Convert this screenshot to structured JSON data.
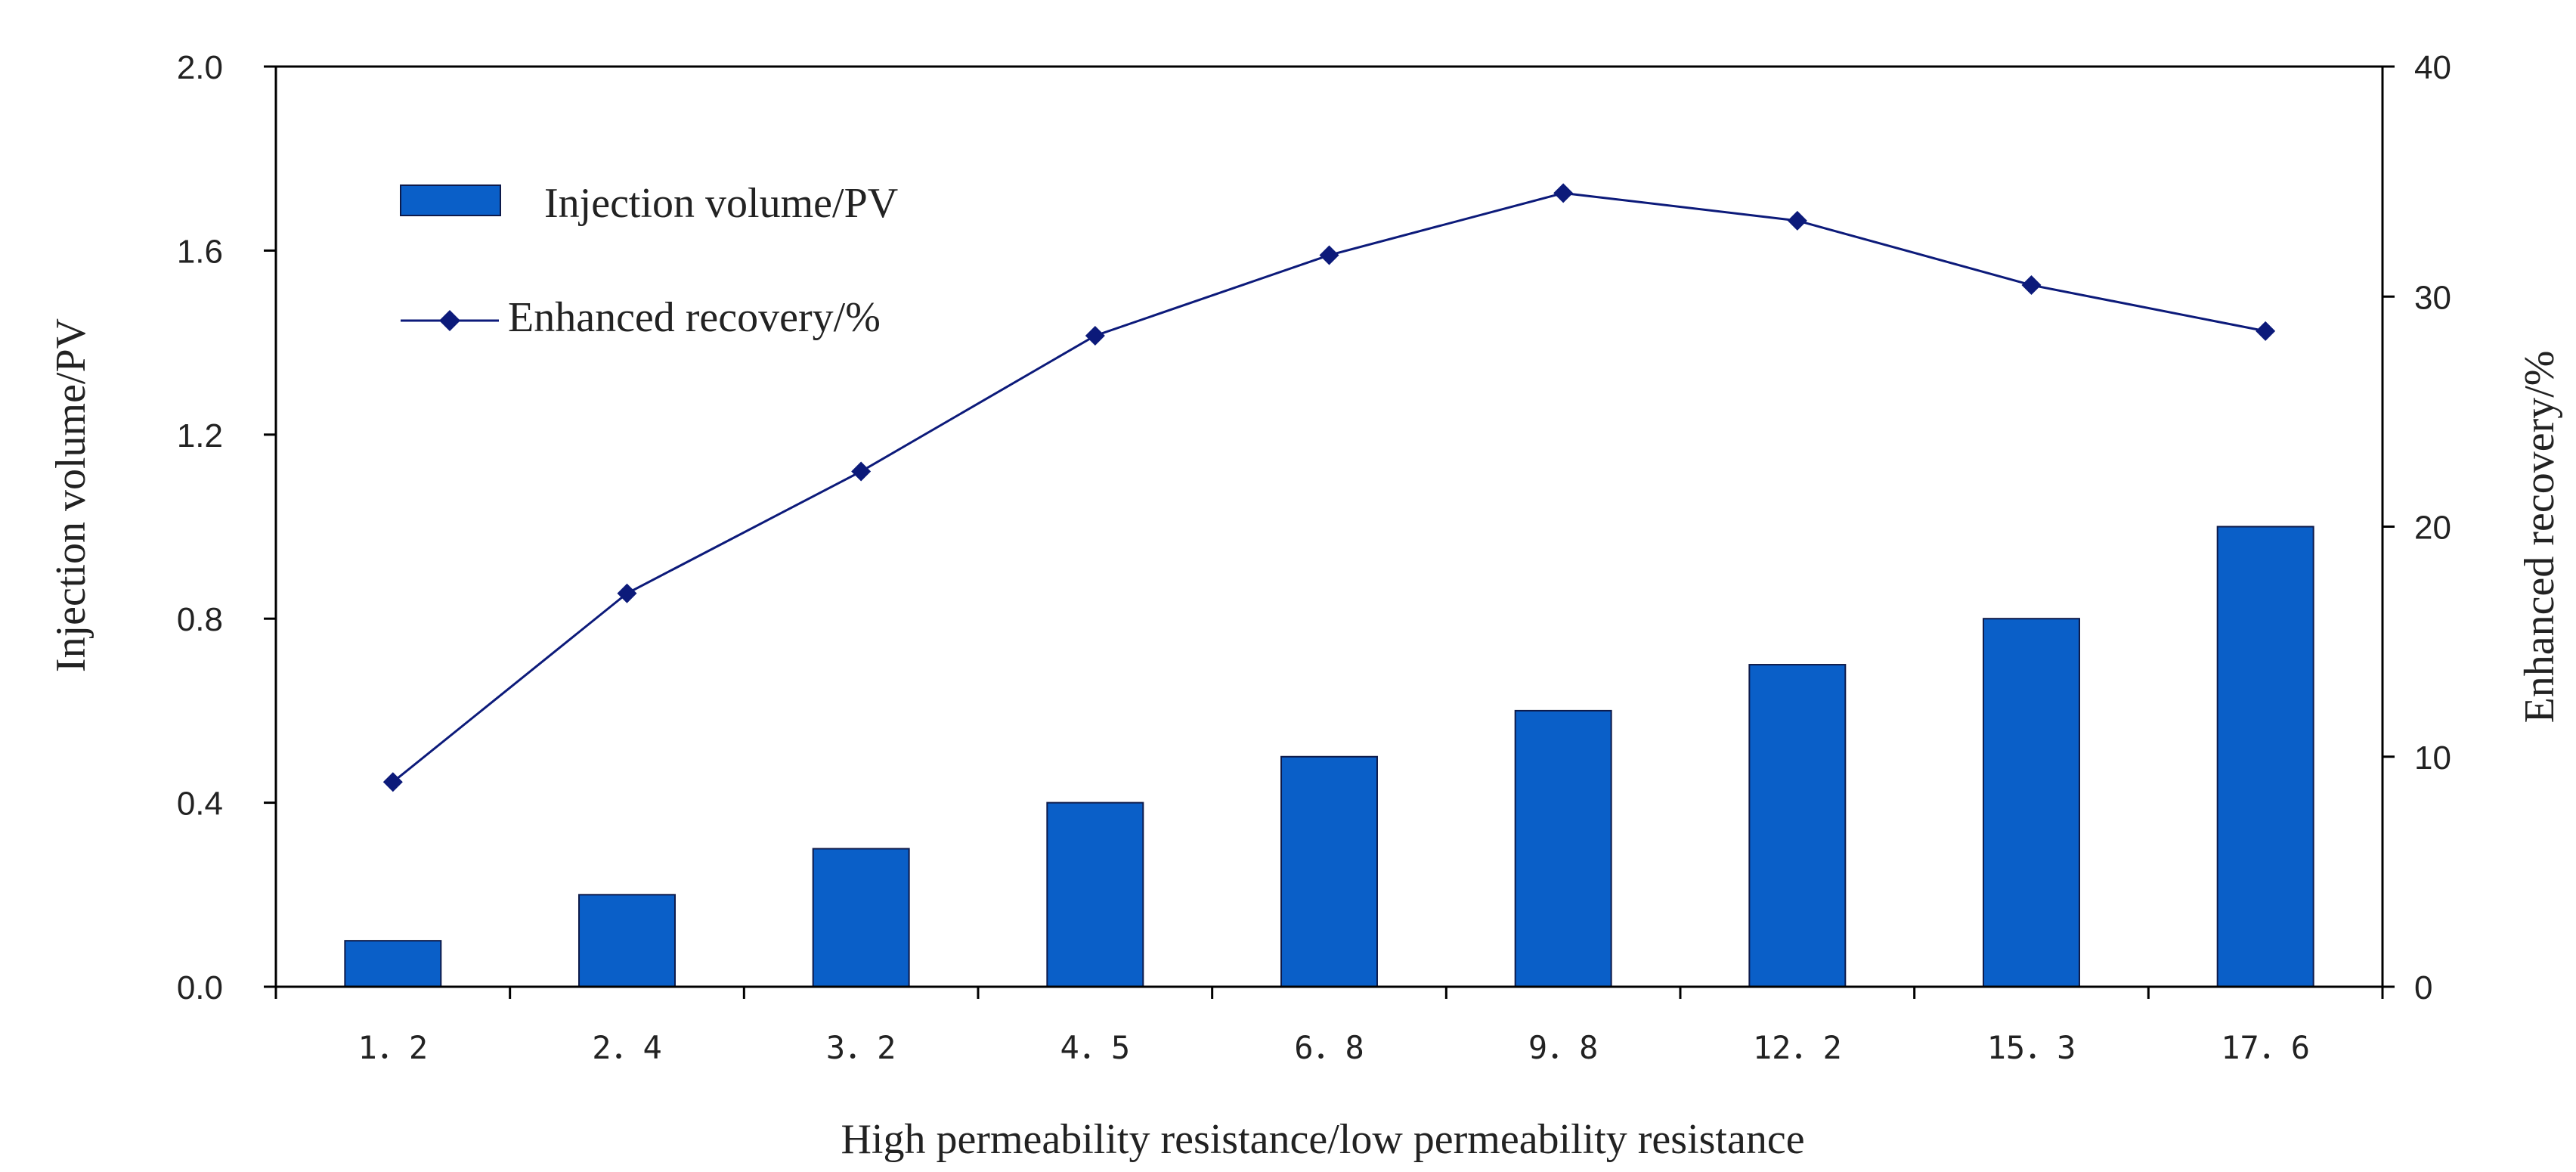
{
  "chart_data": {
    "type": "bar+line",
    "categories": [
      "1.2",
      "2.4",
      "3.2",
      "4.5",
      "6.8",
      "9.8",
      "12.2",
      "15.3",
      "17.6"
    ],
    "category_labels": [
      "1．2",
      "2．4",
      "3．2",
      "4．5",
      "6．8",
      "9．8",
      "12．2",
      "15．3",
      "17．6"
    ],
    "series": [
      {
        "name": "Injection volume/PV",
        "type": "bar",
        "axis": "left",
        "values": [
          0.1,
          0.2,
          0.3,
          0.4,
          0.5,
          0.6,
          0.7,
          0.8,
          1.0
        ]
      },
      {
        "name": "Enhanced recovery/%",
        "type": "line",
        "axis": "right",
        "marker": "diamond",
        "values": [
          8.9,
          17.1,
          22.4,
          28.3,
          31.8,
          34.5,
          33.3,
          30.5,
          28.5
        ]
      }
    ],
    "xlabel": "High permeability resistance/low permeability resistance",
    "ylabel_left": "Injection volume/PV",
    "ylabel_right": "Enhanced recovery/%",
    "ylim_left": [
      0,
      2.0
    ],
    "ylim_right": [
      0,
      40
    ],
    "yticks_left": [
      "0.0",
      "0.4",
      "0.8",
      "1.2",
      "1.6",
      "2.0"
    ],
    "yticks_right": [
      "0",
      "10",
      "20",
      "30",
      "40"
    ],
    "grid": false,
    "legend_position": "top-left",
    "colors": {
      "bar_fill": "#0a5fc8",
      "bar_edge": "#0d1a4a",
      "line": "#0c1a7a",
      "marker": "#0c1a7a",
      "axis": "#000000"
    }
  }
}
